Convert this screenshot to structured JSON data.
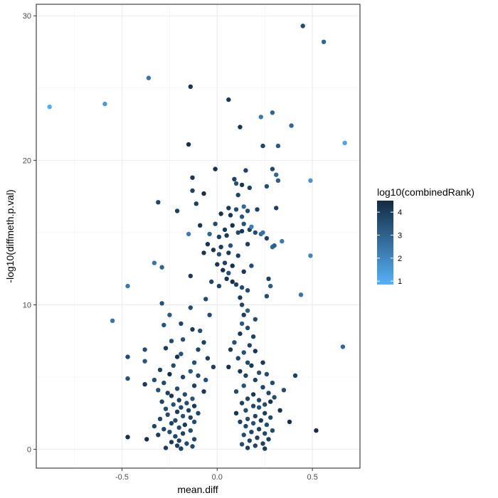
{
  "chart_data": {
    "type": "scatter",
    "xlabel": "mean.diff",
    "ylabel": "-log10(diffmeth.p.val)",
    "xlim": [
      -0.95,
      0.75
    ],
    "ylim": [
      -1.3,
      30.8
    ],
    "x_ticks": [
      -0.5,
      0.0,
      0.5
    ],
    "x_tick_labels": [
      "-0.5",
      "0.0",
      "0.5"
    ],
    "y_ticks": [
      0,
      10,
      20,
      30
    ],
    "y_tick_labels": [
      "0",
      "10",
      "20",
      "30"
    ],
    "grid": true,
    "legend": {
      "title": "log10(combinedRank)",
      "position": "right",
      "range": [
        0.85,
        4.5
      ],
      "ticks": [
        1,
        2,
        3,
        4
      ],
      "tick_labels": [
        "1",
        "2",
        "3",
        "4"
      ],
      "low_color": "#56B1F7",
      "high_color": "#132B43"
    },
    "points": [
      {
        "x": 0.45,
        "y": 29.3,
        "c": 3.6
      },
      {
        "x": 0.56,
        "y": 28.2,
        "c": 2.9
      },
      {
        "x": -0.36,
        "y": 25.7,
        "c": 2.5
      },
      {
        "x": -0.14,
        "y": 25.1,
        "c": 4.2
      },
      {
        "x": 0.06,
        "y": 24.2,
        "c": 4.1
      },
      {
        "x": -0.88,
        "y": 23.7,
        "c": 1.0
      },
      {
        "x": -0.59,
        "y": 23.9,
        "c": 1.5
      },
      {
        "x": 0.29,
        "y": 23.3,
        "c": 2.9
      },
      {
        "x": 0.23,
        "y": 23.0,
        "c": 2.4
      },
      {
        "x": 0.39,
        "y": 22.4,
        "c": 2.9
      },
      {
        "x": 0.12,
        "y": 22.3,
        "c": 4.2
      },
      {
        "x": 0.67,
        "y": 21.2,
        "c": 1.2
      },
      {
        "x": -0.15,
        "y": 21.1,
        "c": 4.3
      },
      {
        "x": 0.24,
        "y": 21.0,
        "c": 3.8
      },
      {
        "x": 0.32,
        "y": 21.0,
        "c": 3.2
      },
      {
        "x": -0.01,
        "y": 19.4,
        "c": 4.3
      },
      {
        "x": 0.15,
        "y": 19.3,
        "c": 3.9
      },
      {
        "x": 0.29,
        "y": 19.4,
        "c": 3.7
      },
      {
        "x": 0.31,
        "y": 19.0,
        "c": 2.8
      },
      {
        "x": -0.13,
        "y": 18.8,
        "c": 4.2
      },
      {
        "x": 0.09,
        "y": 18.7,
        "c": 3.9
      },
      {
        "x": 0.32,
        "y": 18.6,
        "c": 3.1
      },
      {
        "x": 0.49,
        "y": 18.6,
        "c": 1.6
      },
      {
        "x": 0.1,
        "y": 18.4,
        "c": 3.5
      },
      {
        "x": 0.13,
        "y": 18.3,
        "c": 4.2
      },
      {
        "x": 0.17,
        "y": 18.1,
        "c": 3.9
      },
      {
        "x": 0.26,
        "y": 18.2,
        "c": 3.6
      },
      {
        "x": -0.13,
        "y": 17.9,
        "c": 3.9
      },
      {
        "x": -0.07,
        "y": 17.7,
        "c": 4.4
      },
      {
        "x": 0.11,
        "y": 17.6,
        "c": 3.8
      },
      {
        "x": -0.31,
        "y": 17.1,
        "c": 3.8
      },
      {
        "x": -0.11,
        "y": 17.0,
        "c": 3.9
      },
      {
        "x": 0.14,
        "y": 16.8,
        "c": 2.8
      },
      {
        "x": 0.06,
        "y": 16.7,
        "c": 4.1
      },
      {
        "x": -0.21,
        "y": 16.5,
        "c": 3.9
      },
      {
        "x": 0.1,
        "y": 16.6,
        "c": 3.6
      },
      {
        "x": 0.16,
        "y": 16.5,
        "c": 3.6
      },
      {
        "x": 0.21,
        "y": 16.6,
        "c": 3.9
      },
      {
        "x": 0.31,
        "y": 16.7,
        "c": 3.9
      },
      {
        "x": 0.02,
        "y": 16.3,
        "c": 4.3
      },
      {
        "x": 0.07,
        "y": 16.2,
        "c": 4.2
      },
      {
        "x": 0.13,
        "y": 16.1,
        "c": 3.3
      },
      {
        "x": -0.01,
        "y": 15.6,
        "c": 3.6
      },
      {
        "x": 0.08,
        "y": 15.5,
        "c": 4.3
      },
      {
        "x": 0.14,
        "y": 15.6,
        "c": 3.4
      },
      {
        "x": -0.09,
        "y": 15.5,
        "c": 4.2
      },
      {
        "x": 0.17,
        "y": 15.2,
        "c": 3.9
      },
      {
        "x": 0.18,
        "y": 15.4,
        "c": 2.2
      },
      {
        "x": 0.04,
        "y": 15.2,
        "c": 4.1
      },
      {
        "x": 0.11,
        "y": 15.0,
        "c": 3.7
      },
      {
        "x": 0.13,
        "y": 15.1,
        "c": 4.2
      },
      {
        "x": 0.2,
        "y": 15.0,
        "c": 3.6
      },
      {
        "x": -0.15,
        "y": 14.9,
        "c": 2.2
      },
      {
        "x": -0.04,
        "y": 14.9,
        "c": 2.9
      },
      {
        "x": 0.01,
        "y": 14.7,
        "c": 3.9
      },
      {
        "x": 0.05,
        "y": 14.8,
        "c": 4.1
      },
      {
        "x": 0.23,
        "y": 14.9,
        "c": 2.7
      },
      {
        "x": 0.24,
        "y": 15.0,
        "c": 2.5
      },
      {
        "x": 0.26,
        "y": 14.6,
        "c": 3.8
      },
      {
        "x": -0.05,
        "y": 14.2,
        "c": 4.2
      },
      {
        "x": 0.02,
        "y": 14.0,
        "c": 4.0
      },
      {
        "x": -0.02,
        "y": 13.8,
        "c": 4.2
      },
      {
        "x": 0.07,
        "y": 14.1,
        "c": 3.4
      },
      {
        "x": 0.16,
        "y": 14.2,
        "c": 3.9
      },
      {
        "x": 0.29,
        "y": 14.0,
        "c": 2.8
      },
      {
        "x": 0.3,
        "y": 14.1,
        "c": 3.1
      },
      {
        "x": 0.34,
        "y": 14.4,
        "c": 2.4
      },
      {
        "x": -0.07,
        "y": 13.6,
        "c": 4.2
      },
      {
        "x": 0.01,
        "y": 13.5,
        "c": 3.5
      },
      {
        "x": 0.06,
        "y": 13.6,
        "c": 4.1
      },
      {
        "x": 0.11,
        "y": 13.4,
        "c": 4.0
      },
      {
        "x": 0.49,
        "y": 13.4,
        "c": 2.0
      },
      {
        "x": -0.33,
        "y": 12.9,
        "c": 2.5
      },
      {
        "x": 0.0,
        "y": 12.8,
        "c": 4.2
      },
      {
        "x": 0.04,
        "y": 12.9,
        "c": 3.9
      },
      {
        "x": 0.08,
        "y": 12.7,
        "c": 4.4
      },
      {
        "x": 0.18,
        "y": 12.7,
        "c": 3.6
      },
      {
        "x": -0.29,
        "y": 12.6,
        "c": 2.9
      },
      {
        "x": 0.03,
        "y": 12.4,
        "c": 4.3
      },
      {
        "x": 0.06,
        "y": 12.2,
        "c": 3.5
      },
      {
        "x": 0.14,
        "y": 12.3,
        "c": 4.2
      },
      {
        "x": -0.14,
        "y": 12.0,
        "c": 4.1
      },
      {
        "x": 0.05,
        "y": 11.8,
        "c": 4.2
      },
      {
        "x": 0.27,
        "y": 11.8,
        "c": 3.9
      },
      {
        "x": -0.03,
        "y": 11.6,
        "c": 3.8
      },
      {
        "x": 0.08,
        "y": 11.6,
        "c": 4.3
      },
      {
        "x": 0.01,
        "y": 11.3,
        "c": 3.8
      },
      {
        "x": 0.1,
        "y": 11.4,
        "c": 3.9
      },
      {
        "x": -0.47,
        "y": 11.3,
        "c": 2.3
      },
      {
        "x": 0.13,
        "y": 11.2,
        "c": 3.6
      },
      {
        "x": 0.28,
        "y": 11.3,
        "c": 3.1
      },
      {
        "x": 0.16,
        "y": 11.0,
        "c": 3.6
      },
      {
        "x": 0.44,
        "y": 10.7,
        "c": 2.5
      },
      {
        "x": 0.26,
        "y": 10.6,
        "c": 3.6
      },
      {
        "x": -0.06,
        "y": 10.4,
        "c": 3.7
      },
      {
        "x": 0.12,
        "y": 10.5,
        "c": 4.1
      },
      {
        "x": -0.29,
        "y": 10.1,
        "c": 3.4
      },
      {
        "x": 0.13,
        "y": 10.0,
        "c": 3.8
      },
      {
        "x": -0.14,
        "y": 9.8,
        "c": 3.6
      },
      {
        "x": 0.16,
        "y": 9.6,
        "c": 3.1
      },
      {
        "x": -0.25,
        "y": 9.3,
        "c": 3.2
      },
      {
        "x": -0.04,
        "y": 9.3,
        "c": 3.6
      },
      {
        "x": 0.14,
        "y": 9.3,
        "c": 4.0
      },
      {
        "x": 0.2,
        "y": 9.0,
        "c": 3.6
      },
      {
        "x": -0.55,
        "y": 8.9,
        "c": 2.5
      },
      {
        "x": -0.28,
        "y": 8.6,
        "c": 3.4
      },
      {
        "x": -0.19,
        "y": 8.7,
        "c": 3.8
      },
      {
        "x": 0.13,
        "y": 8.7,
        "c": 3.2
      },
      {
        "x": 0.16,
        "y": 8.4,
        "c": 3.7
      },
      {
        "x": -0.13,
        "y": 8.3,
        "c": 4.1
      },
      {
        "x": -0.09,
        "y": 8.2,
        "c": 3.6
      },
      {
        "x": 0.12,
        "y": 8.0,
        "c": 4.2
      },
      {
        "x": 0.19,
        "y": 7.8,
        "c": 3.8
      },
      {
        "x": -0.18,
        "y": 7.6,
        "c": 3.5
      },
      {
        "x": -0.24,
        "y": 7.5,
        "c": 3.6
      },
      {
        "x": -0.07,
        "y": 7.4,
        "c": 3.9
      },
      {
        "x": 0.09,
        "y": 7.4,
        "c": 3.5
      },
      {
        "x": 0.17,
        "y": 7.2,
        "c": 3.9
      },
      {
        "x": 0.66,
        "y": 7.1,
        "c": 2.9
      },
      {
        "x": -0.27,
        "y": 7.0,
        "c": 4.1
      },
      {
        "x": -0.1,
        "y": 6.9,
        "c": 3.8
      },
      {
        "x": 0.07,
        "y": 6.9,
        "c": 4.1
      },
      {
        "x": -0.38,
        "y": 6.9,
        "c": 3.6
      },
      {
        "x": -0.19,
        "y": 6.6,
        "c": 3.4
      },
      {
        "x": 0.14,
        "y": 6.7,
        "c": 3.5
      },
      {
        "x": 0.2,
        "y": 6.8,
        "c": 4.2
      },
      {
        "x": -0.21,
        "y": 6.4,
        "c": 4.3
      },
      {
        "x": -0.05,
        "y": 6.3,
        "c": 4.0
      },
      {
        "x": 0.11,
        "y": 6.3,
        "c": 3.8
      },
      {
        "x": -0.47,
        "y": 6.4,
        "c": 3.6
      },
      {
        "x": -0.38,
        "y": 6.1,
        "c": 3.3
      },
      {
        "x": -0.12,
        "y": 6.0,
        "c": 3.5
      },
      {
        "x": 0.16,
        "y": 6.0,
        "c": 3.7
      },
      {
        "x": 0.24,
        "y": 6.0,
        "c": 4.1
      },
      {
        "x": -0.23,
        "y": 5.8,
        "c": 3.6
      },
      {
        "x": -0.02,
        "y": 5.7,
        "c": 3.9
      },
      {
        "x": 0.06,
        "y": 5.7,
        "c": 4.3
      },
      {
        "x": 0.18,
        "y": 5.8,
        "c": 4.1
      },
      {
        "x": -0.3,
        "y": 5.5,
        "c": 3.9
      },
      {
        "x": -0.14,
        "y": 5.4,
        "c": 3.3
      },
      {
        "x": 0.12,
        "y": 5.4,
        "c": 4.2
      },
      {
        "x": 0.22,
        "y": 5.3,
        "c": 3.5
      },
      {
        "x": -0.25,
        "y": 5.2,
        "c": 4.4
      },
      {
        "x": -0.1,
        "y": 5.1,
        "c": 3.7
      },
      {
        "x": 0.15,
        "y": 5.1,
        "c": 3.8
      },
      {
        "x": 0.26,
        "y": 5.2,
        "c": 3.6
      },
      {
        "x": 0.41,
        "y": 5.1,
        "c": 3.9
      },
      {
        "x": -0.18,
        "y": 5.0,
        "c": 3.8
      },
      {
        "x": -0.47,
        "y": 4.9,
        "c": 3.4
      },
      {
        "x": -0.33,
        "y": 4.8,
        "c": 3.6
      },
      {
        "x": -0.06,
        "y": 4.8,
        "c": 3.5
      },
      {
        "x": 0.2,
        "y": 4.8,
        "c": 3.9
      },
      {
        "x": -0.28,
        "y": 4.6,
        "c": 3.7
      },
      {
        "x": 0.29,
        "y": 4.6,
        "c": 3.6
      },
      {
        "x": -0.38,
        "y": 4.5,
        "c": 4.1
      },
      {
        "x": -0.12,
        "y": 4.4,
        "c": 3.9
      },
      {
        "x": 0.14,
        "y": 4.4,
        "c": 3.4
      },
      {
        "x": 0.24,
        "y": 4.3,
        "c": 3.8
      },
      {
        "x": -0.21,
        "y": 4.2,
        "c": 3.6
      },
      {
        "x": -0.31,
        "y": 4.1,
        "c": 3.5
      },
      {
        "x": 0.35,
        "y": 4.1,
        "c": 3.6
      },
      {
        "x": -0.07,
        "y": 4.0,
        "c": 4.1
      },
      {
        "x": 0.1,
        "y": 4.0,
        "c": 3.7
      },
      {
        "x": -0.26,
        "y": 3.9,
        "c": 3.9
      },
      {
        "x": 0.27,
        "y": 3.9,
        "c": 3.8
      },
      {
        "x": -0.17,
        "y": 3.8,
        "c": 3.6
      },
      {
        "x": 0.19,
        "y": 3.8,
        "c": 4.2
      },
      {
        "x": -0.24,
        "y": 3.7,
        "c": 4.2
      },
      {
        "x": 0.3,
        "y": 3.6,
        "c": 3.6
      },
      {
        "x": -0.13,
        "y": 3.5,
        "c": 3.4
      },
      {
        "x": 0.16,
        "y": 3.5,
        "c": 3.8
      },
      {
        "x": -0.2,
        "y": 3.4,
        "c": 3.9
      },
      {
        "x": 0.22,
        "y": 3.4,
        "c": 3.7
      },
      {
        "x": 0.28,
        "y": 3.3,
        "c": 4.3
      },
      {
        "x": -0.29,
        "y": 3.3,
        "c": 3.8
      },
      {
        "x": -0.16,
        "y": 3.2,
        "c": 3.6
      },
      {
        "x": 0.13,
        "y": 3.2,
        "c": 3.9
      },
      {
        "x": -0.23,
        "y": 3.1,
        "c": 3.5
      },
      {
        "x": 0.25,
        "y": 3.1,
        "c": 3.6
      },
      {
        "x": -0.12,
        "y": 3.0,
        "c": 4.1
      },
      {
        "x": 0.19,
        "y": 3.0,
        "c": 3.7
      },
      {
        "x": -0.19,
        "y": 2.9,
        "c": 3.7
      },
      {
        "x": 0.22,
        "y": 2.9,
        "c": 3.4
      },
      {
        "x": -0.27,
        "y": 2.8,
        "c": 3.6
      },
      {
        "x": 0.33,
        "y": 2.7,
        "c": 4.3
      },
      {
        "x": -0.15,
        "y": 2.7,
        "c": 3.9
      },
      {
        "x": 0.15,
        "y": 2.7,
        "c": 3.6
      },
      {
        "x": -0.21,
        "y": 2.6,
        "c": 4.0
      },
      {
        "x": 0.25,
        "y": 2.5,
        "c": 3.9
      },
      {
        "x": -0.1,
        "y": 2.5,
        "c": 3.8
      },
      {
        "x": 0.1,
        "y": 2.5,
        "c": 4.2
      },
      {
        "x": -0.26,
        "y": 2.4,
        "c": 3.6
      },
      {
        "x": 0.2,
        "y": 2.3,
        "c": 3.8
      },
      {
        "x": -0.18,
        "y": 2.3,
        "c": 3.5
      },
      {
        "x": 0.28,
        "y": 2.2,
        "c": 3.7
      },
      {
        "x": -0.14,
        "y": 2.2,
        "c": 3.9
      },
      {
        "x": 0.16,
        "y": 2.1,
        "c": 3.6
      },
      {
        "x": -0.3,
        "y": 2.1,
        "c": 3.8
      },
      {
        "x": 0.23,
        "y": 2.0,
        "c": 4.1
      },
      {
        "x": -0.22,
        "y": 2.0,
        "c": 3.7
      },
      {
        "x": -0.12,
        "y": 1.9,
        "c": 3.6
      },
      {
        "x": 0.12,
        "y": 1.9,
        "c": 3.9
      },
      {
        "x": 0.38,
        "y": 1.9,
        "c": 4.4
      },
      {
        "x": -0.24,
        "y": 1.8,
        "c": 3.9
      },
      {
        "x": 0.19,
        "y": 1.8,
        "c": 3.5
      },
      {
        "x": -0.17,
        "y": 1.7,
        "c": 4.1
      },
      {
        "x": 0.26,
        "y": 1.7,
        "c": 3.6
      },
      {
        "x": -0.33,
        "y": 1.6,
        "c": 3.8
      },
      {
        "x": 0.15,
        "y": 1.6,
        "c": 3.7
      },
      {
        "x": -0.2,
        "y": 1.5,
        "c": 3.6
      },
      {
        "x": -0.28,
        "y": 1.4,
        "c": 3.8
      },
      {
        "x": 0.22,
        "y": 1.4,
        "c": 3.9
      },
      {
        "x": -0.14,
        "y": 1.3,
        "c": 3.7
      },
      {
        "x": 0.52,
        "y": 1.3,
        "c": 4.4
      },
      {
        "x": 0.29,
        "y": 1.3,
        "c": 3.6
      },
      {
        "x": -0.25,
        "y": 1.2,
        "c": 3.6
      },
      {
        "x": 0.18,
        "y": 1.2,
        "c": 3.8
      },
      {
        "x": -0.18,
        "y": 1.1,
        "c": 3.9
      },
      {
        "x": 0.25,
        "y": 1.1,
        "c": 3.7
      },
      {
        "x": -0.31,
        "y": 1.0,
        "c": 4.0
      },
      {
        "x": 0.14,
        "y": 1.0,
        "c": 3.6
      },
      {
        "x": -0.22,
        "y": 0.9,
        "c": 3.8
      },
      {
        "x": -0.47,
        "y": 0.85,
        "c": 4.4
      },
      {
        "x": -0.37,
        "y": 0.7,
        "c": 4.4
      },
      {
        "x": 0.21,
        "y": 0.8,
        "c": 3.9
      },
      {
        "x": -0.12,
        "y": 0.7,
        "c": 3.7
      },
      {
        "x": 0.27,
        "y": 0.7,
        "c": 4.0
      },
      {
        "x": -0.2,
        "y": 0.6,
        "c": 3.9
      },
      {
        "x": 0.17,
        "y": 0.6,
        "c": 3.8
      },
      {
        "x": -0.24,
        "y": 0.5,
        "c": 4.1
      },
      {
        "x": 0.24,
        "y": 0.4,
        "c": 3.9
      },
      {
        "x": -0.16,
        "y": 0.4,
        "c": 3.7
      },
      {
        "x": 0.13,
        "y": 0.35,
        "c": 3.6
      },
      {
        "x": -0.21,
        "y": 0.25,
        "c": 3.9
      },
      {
        "x": 0.2,
        "y": 0.25,
        "c": 3.8
      },
      {
        "x": -0.13,
        "y": 0.2,
        "c": 3.7
      },
      {
        "x": -0.27,
        "y": 0.1,
        "c": 4.0
      },
      {
        "x": 0.25,
        "y": 0.05,
        "c": 4.0
      },
      {
        "x": 0.16,
        "y": 0.1,
        "c": 3.9
      },
      {
        "x": -0.19,
        "y": 0.05,
        "c": 3.9
      }
    ]
  }
}
